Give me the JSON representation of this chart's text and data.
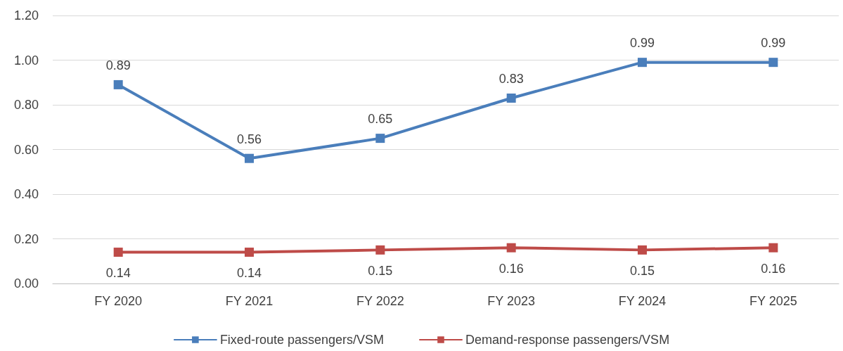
{
  "chart_data": {
    "type": "line",
    "categories": [
      "FY 2020",
      "FY 2021",
      "FY 2022",
      "FY 2023",
      "FY 2024",
      "FY 2025"
    ],
    "series": [
      {
        "name": "Fixed-route passengers/VSM",
        "color": "#4a7ebb",
        "values": [
          0.89,
          0.56,
          0.65,
          0.83,
          0.99,
          0.99
        ]
      },
      {
        "name": "Demand-response passengers/VSM",
        "color": "#be4b48",
        "values": [
          0.14,
          0.14,
          0.15,
          0.16,
          0.15,
          0.16
        ]
      }
    ],
    "ylim": [
      0,
      1.2
    ],
    "yticks": [
      {
        "value": 0,
        "label": "0.00"
      },
      {
        "value": 0.2,
        "label": "0.20"
      },
      {
        "value": 0.4,
        "label": "0.40"
      },
      {
        "value": 0.6,
        "label": "0.60"
      },
      {
        "value": 0.8,
        "label": "0.80"
      },
      {
        "value": 1,
        "label": "1.00"
      },
      {
        "value": 1.2,
        "label": "1.20"
      }
    ],
    "grid": "y",
    "legend": "bottom",
    "marker": "square",
    "line_style": "solid",
    "data_labels": true
  }
}
